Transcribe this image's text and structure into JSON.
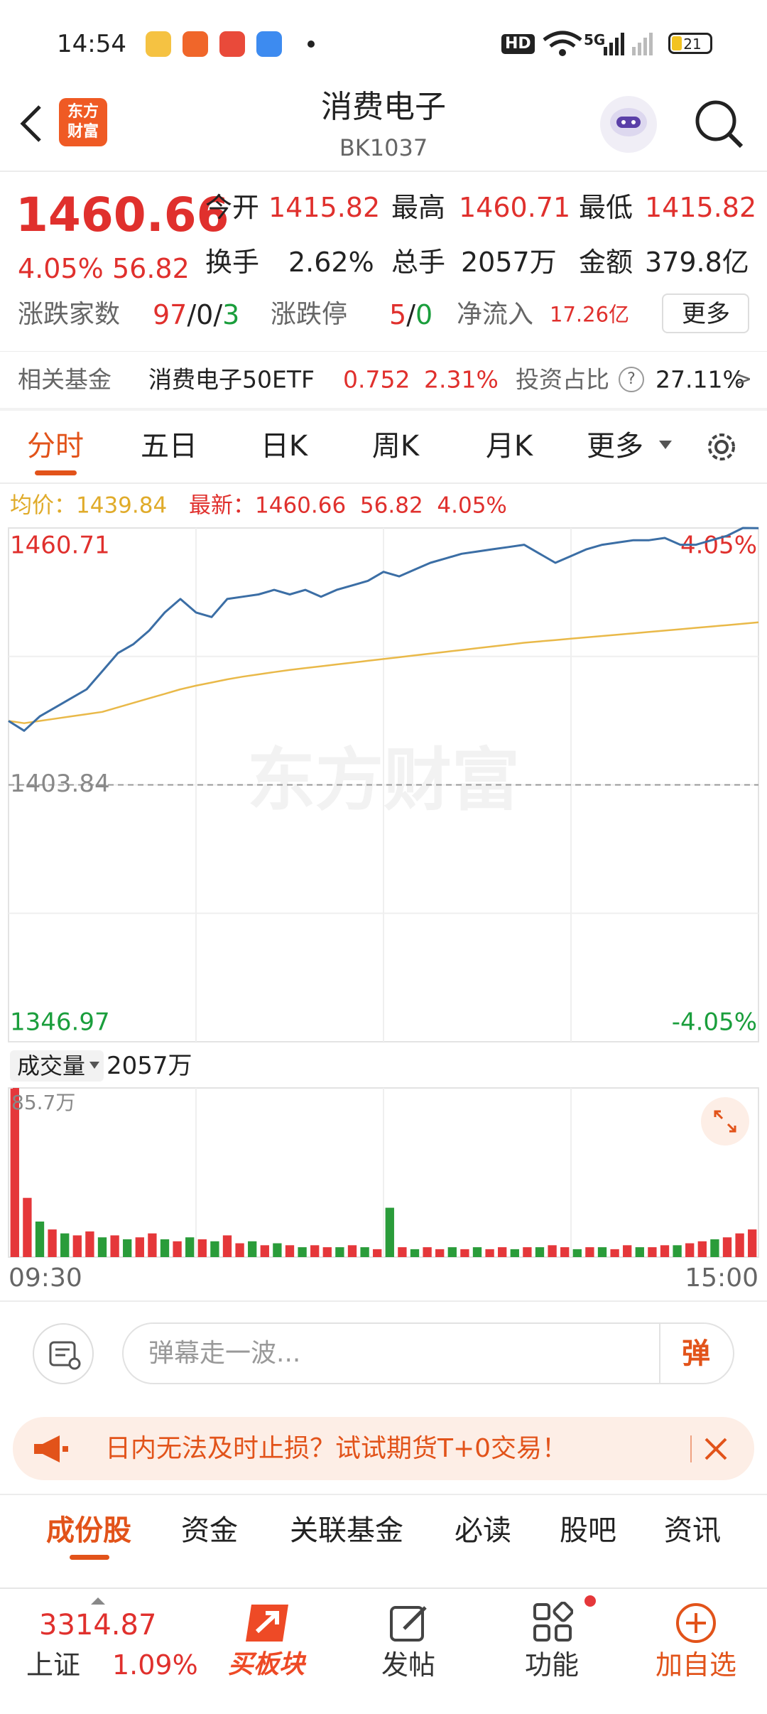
{
  "status_bar": {
    "time": "14:54",
    "hd": "HD",
    "network": "5G",
    "battery": "21"
  },
  "header": {
    "logo_top": "东方",
    "logo_bottom": "财富",
    "title": "消费电子",
    "code": "BK1037"
  },
  "quote": {
    "price": "1460.66",
    "change_pct": "4.05%",
    "change": "56.82",
    "stats": [
      {
        "label": "今开",
        "value": "1415.82"
      },
      {
        "label": "最高",
        "value": "1460.71"
      },
      {
        "label": "最低",
        "value": "1415.82"
      },
      {
        "label": "换手",
        "value": "2.62%"
      },
      {
        "label": "总手",
        "value": "2057万"
      },
      {
        "label": "金额",
        "value": "379.8亿"
      }
    ],
    "breadth": {
      "label": "涨跌家数",
      "up": "97",
      "flat": "0",
      "down": "3",
      "separator": "/"
    },
    "limit": {
      "label": "涨跌停",
      "up": "5",
      "down": "0"
    },
    "inflow": {
      "label": "净流入",
      "value": "17.26亿"
    },
    "more": "更多"
  },
  "fund": {
    "label": "相关基金",
    "name": "消费电子50ETF",
    "price": "0.752",
    "change_pct": "2.31%",
    "weight_label": "投资占比",
    "help": "?",
    "weight": "27.11%",
    "arrow": ">"
  },
  "tabs": [
    "分时",
    "五日",
    "日K",
    "周K",
    "月K",
    "更多"
  ],
  "chart_data": [
    {
      "type": "line",
      "watermark": "东方财富",
      "readout": {
        "avg_label": "均价：",
        "avg": "1439.84",
        "latest_label": "最新：",
        "latest": "1460.66",
        "change": "56.82",
        "change_pct": "4.05%"
      },
      "series": [
        {
          "color": "#3b6ea5",
          "values": [
            1418,
            1415.82,
            1419,
            1421,
            1423,
            1425,
            1429,
            1433,
            1435,
            1438,
            1442,
            1445,
            1442,
            1441,
            1445,
            1445.5,
            1446,
            1447,
            1446,
            1447,
            1445.5,
            1447,
            1448,
            1449,
            1451,
            1450,
            1451.5,
            1453,
            1454,
            1455,
            1455.5,
            1456,
            1456.5,
            1457,
            1455,
            1453,
            1454.5,
            1456,
            1457,
            1457.5,
            1458,
            1458,
            1458.5,
            1457,
            1457,
            1458,
            1459,
            1460.71,
            1460.66
          ]
        },
        {
          "color": "#e9b949",
          "values": [
            1418,
            1417.5,
            1418,
            1418.5,
            1419,
            1419.5,
            1420,
            1421,
            1422,
            1423,
            1424,
            1425,
            1425.8,
            1426.5,
            1427.2,
            1427.8,
            1428.3,
            1428.8,
            1429.3,
            1429.7,
            1430.1,
            1430.5,
            1430.9,
            1431.3,
            1431.7,
            1432.1,
            1432.5,
            1432.9,
            1433.3,
            1433.7,
            1434.1,
            1434.5,
            1434.9,
            1435.3,
            1435.6,
            1435.9,
            1436.2,
            1436.5,
            1436.8,
            1437.1,
            1437.4,
            1437.7,
            1438,
            1438.3,
            1438.6,
            1438.9,
            1439.2,
            1439.5,
            1439.84
          ]
        }
      ],
      "ylim": [
        1346.97,
        1460.71
      ],
      "yticks": [
        1346.97,
        1403.84,
        1460.71
      ],
      "y2lim": [
        -4.05,
        4.05
      ],
      "y2ticks": [
        {
          "value": -4.05,
          "label": "-4.05%"
        },
        {
          "value": 4.05,
          "label": "4.05%"
        }
      ],
      "grid_rows": 4,
      "grid_cols": 4
    },
    {
      "type": "bar",
      "label": "成交量",
      "total": "2057万",
      "categories": [
        "09:30",
        null,
        null,
        null,
        null,
        null,
        null,
        null,
        null,
        null,
        null,
        null,
        null,
        null,
        null,
        null,
        null,
        null,
        null,
        null,
        null,
        null,
        null,
        null,
        null,
        null,
        null,
        null,
        null,
        null,
        null,
        null,
        null,
        null,
        null,
        null,
        null,
        null,
        null,
        null,
        null,
        null,
        null,
        null,
        null,
        null,
        null,
        null,
        null,
        null,
        null,
        null,
        null,
        null,
        null,
        null,
        null,
        null,
        null,
        "15:00"
      ],
      "values": [
        85.7,
        30,
        18,
        14,
        12,
        11,
        13,
        10,
        11,
        9,
        10,
        12,
        9,
        8,
        10,
        9,
        8,
        11,
        7,
        8,
        6,
        7,
        6,
        5,
        6,
        5,
        5,
        6,
        5,
        4,
        25,
        5,
        4,
        5,
        4,
        5,
        4,
        5,
        4,
        5,
        4,
        5,
        5,
        6,
        5,
        4,
        5,
        5,
        4,
        6,
        5,
        5,
        6,
        6,
        7,
        8,
        9,
        10,
        12,
        14
      ],
      "colors": [
        "#e5373a",
        "#e5373a",
        "#2a9c3a",
        "#e5373a",
        "#2a9c3a",
        "#e5373a",
        "#e5373a",
        "#2a9c3a",
        "#e5373a",
        "#2a9c3a",
        "#e5373a",
        "#e5373a",
        "#2a9c3a",
        "#e5373a",
        "#2a9c3a",
        "#e5373a",
        "#2a9c3a",
        "#e5373a",
        "#e5373a",
        "#2a9c3a",
        "#e5373a",
        "#2a9c3a",
        "#e5373a",
        "#2a9c3a",
        "#e5373a",
        "#e5373a",
        "#2a9c3a",
        "#e5373a",
        "#2a9c3a",
        "#e5373a",
        "#2a9c3a",
        "#e5373a",
        "#2a9c3a",
        "#e5373a",
        "#e5373a",
        "#2a9c3a",
        "#e5373a",
        "#2a9c3a",
        "#e5373a",
        "#e5373a",
        "#2a9c3a",
        "#e5373a",
        "#2a9c3a",
        "#e5373a",
        "#e5373a",
        "#2a9c3a",
        "#e5373a",
        "#2a9c3a",
        "#e5373a",
        "#e5373a",
        "#2a9c3a",
        "#e5373a",
        "#e5373a",
        "#2a9c3a",
        "#e5373a",
        "#e5373a",
        "#2a9c3a",
        "#e5373a",
        "#e5373a",
        "#e5373a"
      ],
      "ylim": [
        0,
        85.7
      ],
      "yticks": [
        {
          "value": 85.7,
          "label": "85.7万"
        }
      ],
      "grid_cols": 4
    }
  ],
  "comment": {
    "placeholder": "弹幕走一波...",
    "button": "弹"
  },
  "banner": {
    "text": "日内无法及时止损？试试期货T+0交易！"
  },
  "section_tabs": [
    "成份股",
    "资金",
    "关联基金",
    "必读",
    "股吧",
    "资讯"
  ],
  "bottom_bar": {
    "index_value": "3314.87",
    "index_name": "上证",
    "index_change": "1.09%",
    "items": [
      "买板块",
      "发帖",
      "功能",
      "加自选"
    ]
  }
}
